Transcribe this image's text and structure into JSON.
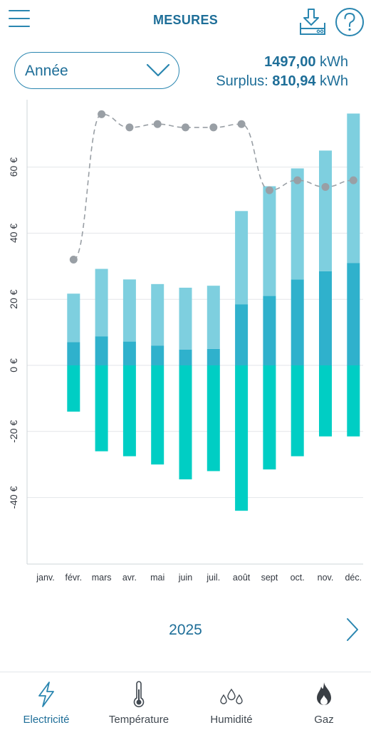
{
  "header": {
    "title": "MESURES"
  },
  "period_select": {
    "label": "Année"
  },
  "totals": {
    "total_value": "1497,00",
    "unit": "kWh",
    "surplus_label": "Surplus:",
    "surplus_value": "810,94"
  },
  "year_nav": {
    "year": "2025"
  },
  "tabs": [
    {
      "label": "Electricité",
      "icon": "lightning-icon",
      "active": true
    },
    {
      "label": "Température",
      "icon": "thermometer-icon",
      "active": false
    },
    {
      "label": "Humidité",
      "icon": "droplets-icon",
      "active": false
    },
    {
      "label": "Gaz",
      "icon": "flame-icon",
      "active": false
    }
  ],
  "colors": {
    "accent": "#1e6e98",
    "bar_top": "#7ecfdf",
    "bar_mid": "#2fb1cc",
    "bar_negative": "#00cec4",
    "line": "#999fa5"
  },
  "chart_data": {
    "type": "bar",
    "categories": [
      "janv.",
      "févr.",
      "mars",
      "avr.",
      "mai",
      "juin",
      "juil.",
      "août",
      "sept",
      "oct.",
      "nov.",
      "déc."
    ],
    "series": [
      {
        "stack": "positive",
        "values": [
          null,
          7,
          8.8,
          7.2,
          6,
          4.8,
          5,
          18.5,
          21,
          26,
          28.5,
          31
        ]
      },
      {
        "stack": "positive",
        "values": [
          null,
          14.7,
          20.4,
          18.8,
          18.6,
          18.7,
          19.1,
          28.2,
          33.2,
          33.6,
          36.5,
          45.2
        ]
      },
      {
        "stack": "negative",
        "values": [
          null,
          -14,
          -26,
          -27.5,
          -30,
          -34.5,
          -32,
          -44,
          -31.5,
          -27.5,
          -21.5,
          -21.5
        ]
      },
      {
        "type": "line",
        "style": "dashed",
        "values": [
          null,
          32,
          76,
          72,
          73,
          72,
          72,
          73,
          53,
          56,
          54,
          56
        ]
      }
    ],
    "yticks": [
      "-40 €",
      "-20 €",
      "0 €",
      "20 €",
      "40 €",
      "60 €"
    ],
    "ytick_values": [
      -40,
      -20,
      0,
      20,
      40,
      60
    ],
    "ylim": [
      -60,
      80
    ],
    "grid": true,
    "legend": "none"
  }
}
